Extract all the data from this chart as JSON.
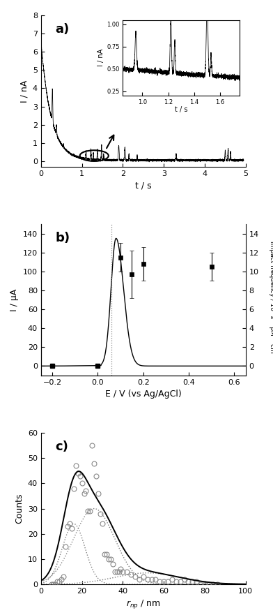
{
  "panel_a": {
    "label": "a)",
    "xlabel": "t / s",
    "ylabel": "I / nA",
    "xlim": [
      0,
      5
    ],
    "ylim": [
      -0.3,
      8
    ],
    "yticks": [
      0,
      1,
      2,
      3,
      4,
      5,
      6,
      7,
      8
    ],
    "xticks": [
      0,
      1,
      2,
      3,
      4,
      5
    ],
    "inset": {
      "xlim": [
        0.85,
        1.75
      ],
      "ylim": [
        0.2,
        1.05
      ],
      "yticks": [
        0.25,
        0.5,
        0.75,
        1.0
      ],
      "xticks": [
        1.0,
        1.2,
        1.4,
        1.6
      ],
      "xlabel": "t / s",
      "ylabel": "I / nA"
    }
  },
  "panel_b": {
    "label": "b)",
    "xlabel": "E / V (vs Ag/AgCl)",
    "ylabel_left": "I / μA",
    "ylabel_right": "Impact frequency / 10⁵ s⁻¹ pM⁻¹ cm⁻²",
    "xlim": [
      -0.25,
      0.65
    ],
    "ylim_left": [
      -10,
      150
    ],
    "ylim_right": [
      -1,
      15
    ],
    "yticks_left": [
      0,
      20,
      40,
      60,
      80,
      100,
      120,
      140
    ],
    "yticks_right": [
      0,
      2,
      4,
      6,
      8,
      10,
      12,
      14
    ],
    "xticks": [
      -0.2,
      0.0,
      0.2,
      0.4,
      0.6
    ],
    "vline_x": 0.06,
    "scatter_x": [
      -0.2,
      0.0,
      0.1,
      0.15,
      0.2,
      0.5
    ],
    "scatter_y": [
      0.05,
      0.05,
      11.5,
      9.7,
      10.8,
      10.5
    ],
    "scatter_yerr": [
      0.0,
      0.0,
      1.5,
      2.5,
      1.8,
      1.5
    ]
  },
  "panel_c": {
    "label": "c)",
    "xlabel": "$r_{np}$ / nm",
    "ylabel": "Counts",
    "xlim": [
      0,
      100
    ],
    "ylim": [
      0,
      60
    ],
    "yticks": [
      0,
      10,
      20,
      30,
      40,
      50,
      60
    ],
    "xticks": [
      0,
      20,
      40,
      60,
      80,
      100
    ],
    "gauss1": {
      "mu": 16,
      "sigma": 5.5,
      "amp": 24
    },
    "gauss2": {
      "mu": 26,
      "sigma": 10,
      "amp": 30
    },
    "gauss3": {
      "mu": 52,
      "sigma": 16,
      "amp": 4.5
    },
    "scatter_x": [
      5,
      6,
      7,
      8,
      9,
      10,
      11,
      12,
      13,
      14,
      15,
      16,
      17,
      18,
      19,
      20,
      21,
      22,
      23,
      24,
      25,
      26,
      27,
      28,
      29,
      30,
      31,
      32,
      33,
      34,
      35,
      36,
      37,
      38,
      39,
      40,
      42,
      44,
      46,
      48,
      50,
      52,
      54,
      56,
      58,
      60,
      62,
      64,
      66,
      68,
      70,
      72,
      74,
      76,
      78,
      80,
      82,
      84,
      86
    ],
    "scatter_y": [
      0,
      0,
      0,
      1,
      1,
      2,
      3,
      15,
      23,
      24,
      22,
      38,
      47,
      44,
      43,
      40,
      36,
      37,
      29,
      29,
      55,
      48,
      43,
      36,
      28,
      24,
      12,
      12,
      10,
      10,
      8,
      5,
      5,
      5,
      6,
      5,
      5,
      4,
      3,
      2,
      3,
      2,
      2,
      2,
      1,
      1,
      1,
      2,
      1,
      1,
      2,
      1,
      1,
      1,
      0,
      0,
      0,
      0,
      0
    ]
  }
}
